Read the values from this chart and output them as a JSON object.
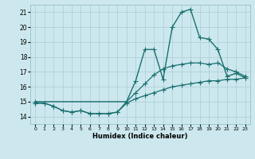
{
  "xlabel": "Humidex (Indice chaleur)",
  "ylabel": "",
  "background_color": "#cce8ee",
  "grid_color": "#aaccd4",
  "line_color": "#1a7070",
  "xlim": [
    -0.5,
    23.5
  ],
  "ylim": [
    13.5,
    21.5
  ],
  "yticks": [
    14,
    15,
    16,
    17,
    18,
    19,
    20,
    21
  ],
  "xticks": [
    0,
    1,
    2,
    3,
    4,
    5,
    6,
    7,
    8,
    9,
    10,
    11,
    12,
    13,
    14,
    15,
    16,
    17,
    18,
    19,
    20,
    21,
    22,
    23
  ],
  "series": [
    {
      "x": [
        0,
        1,
        2,
        3,
        4,
        5,
        6,
        7,
        8,
        9,
        10,
        11,
        12,
        13,
        14,
        15,
        16,
        17,
        18,
        19,
        20,
        21,
        22,
        23
      ],
      "y": [
        14.9,
        14.9,
        14.7,
        14.4,
        14.3,
        14.4,
        14.2,
        14.2,
        14.2,
        14.3,
        14.9,
        15.2,
        15.4,
        15.6,
        15.8,
        16.0,
        16.1,
        16.2,
        16.3,
        16.4,
        16.4,
        16.5,
        16.5,
        16.6
      ],
      "marker": "+",
      "linewidth": 0.9,
      "markersize": 4
    },
    {
      "x": [
        0,
        1,
        2,
        3,
        4,
        5,
        6,
        7,
        8,
        9,
        10,
        11,
        12,
        13,
        14,
        15,
        16,
        17,
        18,
        19,
        20,
        21,
        22,
        23
      ],
      "y": [
        14.9,
        14.9,
        14.7,
        14.4,
        14.3,
        14.4,
        14.2,
        14.2,
        14.2,
        14.3,
        15.0,
        15.6,
        16.2,
        16.8,
        17.2,
        17.4,
        17.5,
        17.6,
        17.6,
        17.5,
        17.6,
        17.2,
        17.0,
        16.7
      ],
      "marker": "+",
      "linewidth": 0.9,
      "markersize": 4
    },
    {
      "x": [
        0,
        10,
        11,
        12,
        13,
        14,
        15,
        16,
        17,
        18,
        19,
        20,
        21,
        22,
        23
      ],
      "y": [
        15.0,
        15.0,
        16.4,
        18.5,
        18.5,
        16.5,
        20.0,
        21.0,
        21.2,
        19.3,
        19.2,
        18.5,
        16.7,
        16.9,
        16.6
      ],
      "marker": "+",
      "linewidth": 1.0,
      "markersize": 4
    }
  ]
}
